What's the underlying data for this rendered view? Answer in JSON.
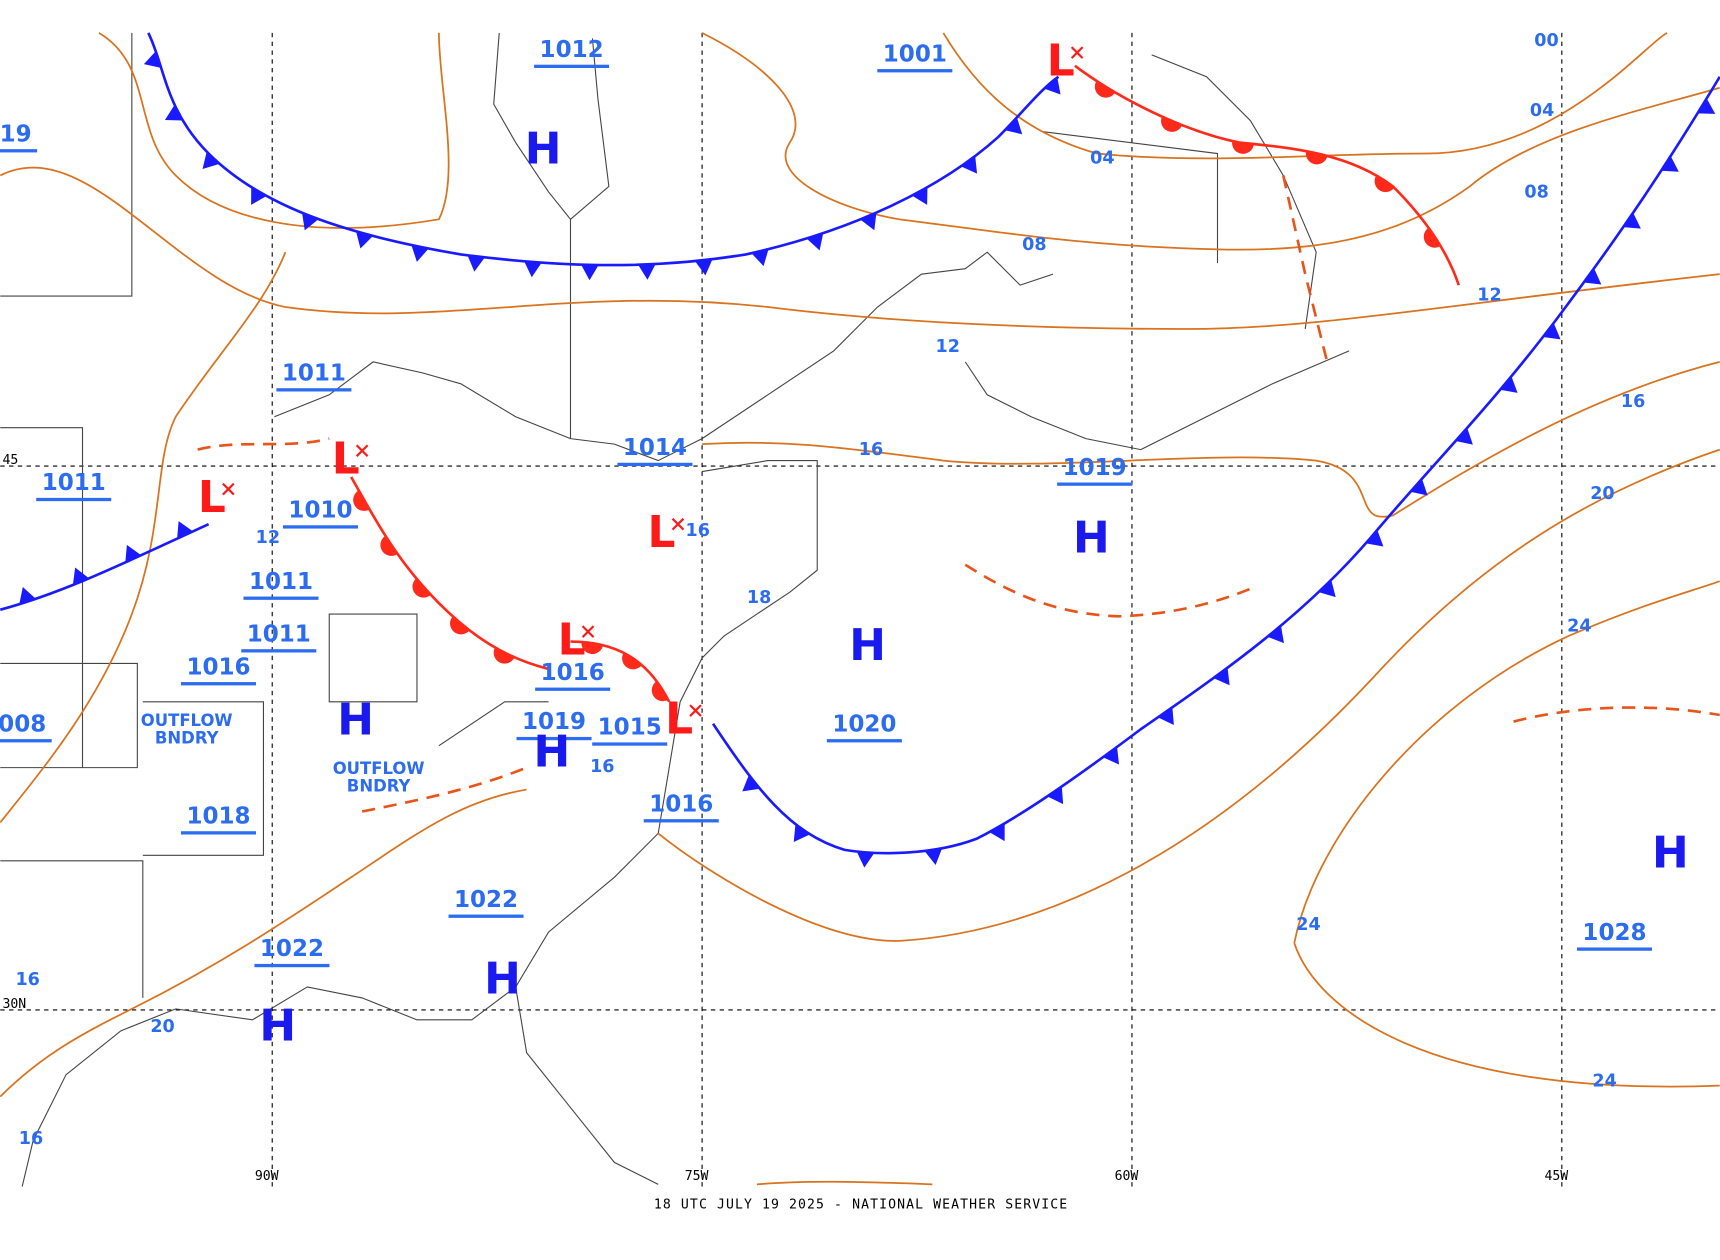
{
  "map": {
    "footer": "18 UTC JULY 19 2025 - NATIONAL WEATHER SERVICE",
    "longitude_labels": [
      "90W",
      "75W",
      "60W",
      "45W"
    ],
    "latitude_labels": [
      "45",
      "30N"
    ],
    "pressure_values": [
      "1012",
      "1001",
      "1011",
      "1011",
      "1010",
      "1011",
      "1011",
      "1016",
      "1014",
      "1019",
      "1016",
      "1019",
      "1015",
      "1016",
      "1020",
      "1018",
      "1022",
      "1022",
      "1028",
      "008",
      "19"
    ],
    "highs": [
      "H",
      "H",
      "H",
      "H",
      "H",
      "H",
      "H",
      "H"
    ],
    "lows": [
      "L",
      "L",
      "L",
      "L",
      "L",
      "L"
    ],
    "isobar_labels": [
      "00",
      "04",
      "08",
      "12",
      "16",
      "20",
      "24",
      "24",
      "24",
      "04",
      "08",
      "12",
      "16",
      "16",
      "18",
      "16",
      "12",
      "20",
      "16",
      "16"
    ],
    "boundary_labels": [
      [
        "OUTFLOW",
        "BNDRY"
      ],
      [
        "OUTFLOW",
        "BNDRY"
      ]
    ]
  }
}
